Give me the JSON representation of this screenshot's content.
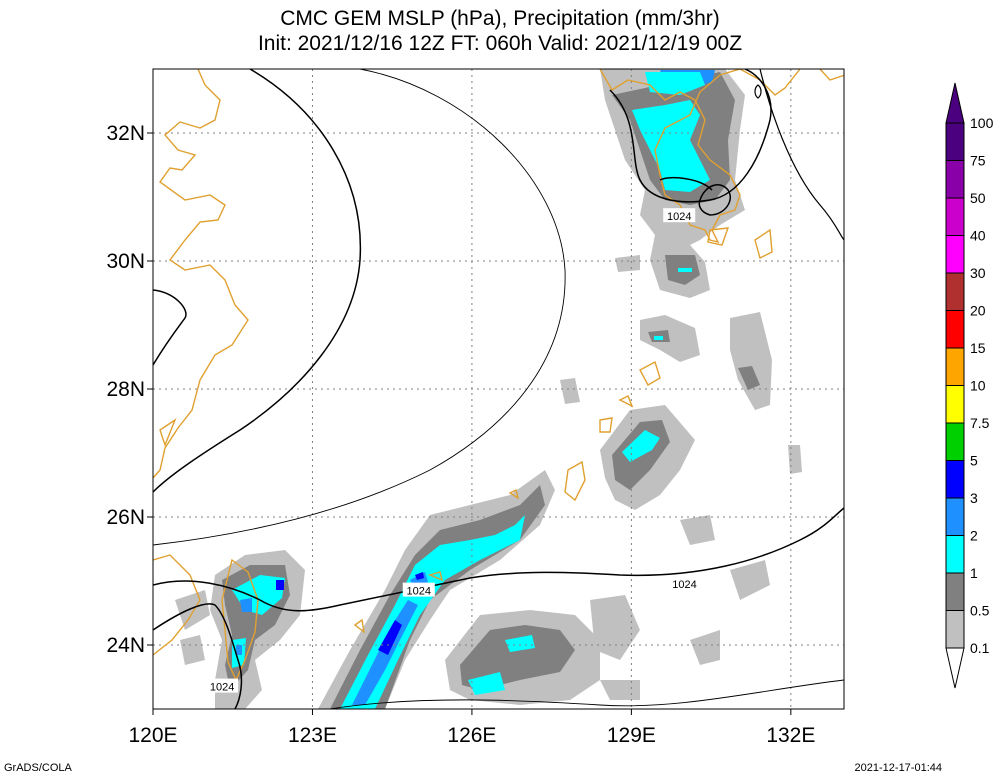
{
  "title": {
    "line1": "CMC GEM MSLP (hPa), Precipitation (mm/3hr)",
    "line2": "Init: 2021/12/16 12Z  FT: 060h  Valid: 2021/12/19 00Z"
  },
  "map": {
    "lon_range": [
      120,
      133
    ],
    "lat_range": [
      23,
      33
    ],
    "lon_ticks": [
      {
        "value": 120,
        "label": "120E"
      },
      {
        "value": 123,
        "label": "123E"
      },
      {
        "value": 126,
        "label": "126E"
      },
      {
        "value": 129,
        "label": "129E"
      },
      {
        "value": 132,
        "label": "132E"
      }
    ],
    "lat_ticks": [
      {
        "value": 24,
        "label": "24N"
      },
      {
        "value": 26,
        "label": "26N"
      },
      {
        "value": 28,
        "label": "28N"
      },
      {
        "value": 30,
        "label": "30N"
      },
      {
        "value": 32,
        "label": "32N"
      }
    ],
    "gridlines": "dotted",
    "coastline_color": "#e0a030",
    "contour_color": "#000000"
  },
  "isobar_labels": [
    {
      "text": "1024",
      "lon": 129.9,
      "lat": 30.7
    },
    {
      "text": "1024",
      "lon": 125.0,
      "lat": 24.85
    },
    {
      "text": "1024",
      "lon": 130.0,
      "lat": 24.95
    },
    {
      "text": "1024",
      "lon": 121.3,
      "lat": 23.35
    }
  ],
  "colorbar": {
    "levels": [
      "0.1",
      "0.5",
      "1",
      "2",
      "3",
      "5",
      "7.5",
      "10",
      "15",
      "20",
      "30",
      "40",
      "50",
      "75",
      "100"
    ],
    "colors": [
      "#c0c0c0",
      "#808080",
      "#00ffff",
      "#1e90ff",
      "#0000ff",
      "#00d000",
      "#ffff00",
      "#ffa500",
      "#ff0000",
      "#b03030",
      "#ff00ff",
      "#cc00cc",
      "#8a00a8",
      "#4b0080"
    ]
  },
  "footer": {
    "left": "GrADS/COLA",
    "right": "2021-12-17-01:44"
  }
}
